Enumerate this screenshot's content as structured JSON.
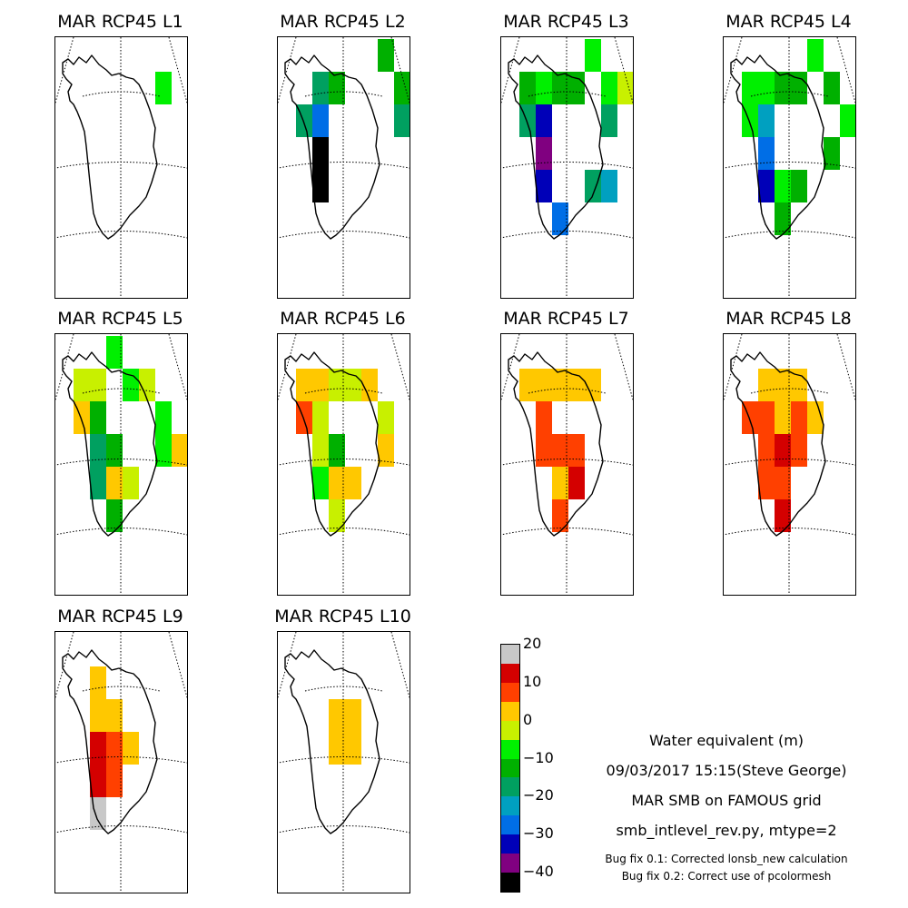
{
  "chart_data": {
    "type": "heatmap",
    "title": "",
    "panels": [
      {
        "title": "MAR RCP45 L1",
        "cells": [
          {
            "col": 6,
            "row": 1,
            "value": -8
          }
        ]
      },
      {
        "title": "MAR RCP45 L2",
        "cells": [
          {
            "col": 2,
            "row": 1,
            "value": -18
          },
          {
            "col": 3,
            "row": 1,
            "value": -14
          },
          {
            "col": 6,
            "row": 0,
            "value": -12
          },
          {
            "col": 7,
            "row": 1,
            "value": -14
          },
          {
            "col": 1,
            "row": 2,
            "value": -20
          },
          {
            "col": 2,
            "row": 2,
            "value": -28
          },
          {
            "col": 7,
            "row": 2,
            "value": -18
          },
          {
            "col": 2,
            "row": 3,
            "value": -45
          },
          {
            "col": 2,
            "row": 4,
            "value": -45
          }
        ]
      },
      {
        "title": "MAR RCP45 L3",
        "cells": [
          {
            "col": 1,
            "row": 1,
            "value": -12
          },
          {
            "col": 2,
            "row": 1,
            "value": -8
          },
          {
            "col": 3,
            "row": 1,
            "value": -12
          },
          {
            "col": 4,
            "row": 1,
            "value": -15
          },
          {
            "col": 5,
            "row": 0,
            "value": -8
          },
          {
            "col": 6,
            "row": 1,
            "value": -8
          },
          {
            "col": 7,
            "row": 1,
            "value": -2
          },
          {
            "col": 1,
            "row": 2,
            "value": -18
          },
          {
            "col": 2,
            "row": 2,
            "value": -32
          },
          {
            "col": 6,
            "row": 2,
            "value": -18
          },
          {
            "col": 2,
            "row": 3,
            "value": -40
          },
          {
            "col": 2,
            "row": 4,
            "value": -32
          },
          {
            "col": 5,
            "row": 4,
            "value": -18
          },
          {
            "col": 6,
            "row": 4,
            "value": -22
          },
          {
            "col": 3,
            "row": 5,
            "value": -28
          }
        ]
      },
      {
        "title": "MAR RCP45 L4",
        "cells": [
          {
            "col": 1,
            "row": 1,
            "value": -8
          },
          {
            "col": 2,
            "row": 1,
            "value": -8
          },
          {
            "col": 3,
            "row": 1,
            "value": -14
          },
          {
            "col": 4,
            "row": 1,
            "value": -14
          },
          {
            "col": 5,
            "row": 0,
            "value": -8
          },
          {
            "col": 6,
            "row": 1,
            "value": -14
          },
          {
            "col": 1,
            "row": 2,
            "value": -8
          },
          {
            "col": 2,
            "row": 2,
            "value": -22
          },
          {
            "col": 7,
            "row": 2,
            "value": -8
          },
          {
            "col": 2,
            "row": 3,
            "value": -28
          },
          {
            "col": 6,
            "row": 3,
            "value": -14
          },
          {
            "col": 2,
            "row": 4,
            "value": -32
          },
          {
            "col": 3,
            "row": 4,
            "value": -8
          },
          {
            "col": 4,
            "row": 4,
            "value": -14
          },
          {
            "col": 3,
            "row": 5,
            "value": -12
          }
        ]
      },
      {
        "title": "MAR RCP45 L5",
        "cells": [
          {
            "col": 1,
            "row": 1,
            "value": -2
          },
          {
            "col": 2,
            "row": 1,
            "value": -2
          },
          {
            "col": 3,
            "row": 0,
            "value": -8
          },
          {
            "col": 4,
            "row": 1,
            "value": -8
          },
          {
            "col": 5,
            "row": 1,
            "value": -2
          },
          {
            "col": 1,
            "row": 2,
            "value": 2
          },
          {
            "col": 2,
            "row": 2,
            "value": -14
          },
          {
            "col": 6,
            "row": 2,
            "value": -8
          },
          {
            "col": 2,
            "row": 3,
            "value": -18
          },
          {
            "col": 3,
            "row": 3,
            "value": -12
          },
          {
            "col": 6,
            "row": 3,
            "value": -8
          },
          {
            "col": 7,
            "row": 3,
            "value": 2
          },
          {
            "col": 2,
            "row": 4,
            "value": -18
          },
          {
            "col": 3,
            "row": 4,
            "value": 2
          },
          {
            "col": 4,
            "row": 4,
            "value": -2
          },
          {
            "col": 3,
            "row": 5,
            "value": -12
          }
        ]
      },
      {
        "title": "MAR RCP45 L6",
        "cells": [
          {
            "col": 1,
            "row": 1,
            "value": 2
          },
          {
            "col": 2,
            "row": 1,
            "value": 2
          },
          {
            "col": 3,
            "row": 1,
            "value": -2
          },
          {
            "col": 4,
            "row": 1,
            "value": -2
          },
          {
            "col": 5,
            "row": 1,
            "value": 2
          },
          {
            "col": 1,
            "row": 2,
            "value": 8
          },
          {
            "col": 2,
            "row": 2,
            "value": -2
          },
          {
            "col": 6,
            "row": 2,
            "value": -2
          },
          {
            "col": 2,
            "row": 3,
            "value": -2
          },
          {
            "col": 3,
            "row": 3,
            "value": -12
          },
          {
            "col": 6,
            "row": 3,
            "value": 2
          },
          {
            "col": 2,
            "row": 4,
            "value": -8
          },
          {
            "col": 3,
            "row": 4,
            "value": 2
          },
          {
            "col": 4,
            "row": 4,
            "value": 2
          },
          {
            "col": 3,
            "row": 5,
            "value": -2
          }
        ]
      },
      {
        "title": "MAR RCP45 L7",
        "cells": [
          {
            "col": 1,
            "row": 1,
            "value": 2
          },
          {
            "col": 2,
            "row": 1,
            "value": 2
          },
          {
            "col": 3,
            "row": 1,
            "value": 2
          },
          {
            "col": 4,
            "row": 1,
            "value": 2
          },
          {
            "col": 5,
            "row": 1,
            "value": 2
          },
          {
            "col": 2,
            "row": 2,
            "value": 8
          },
          {
            "col": 2,
            "row": 3,
            "value": 8
          },
          {
            "col": 3,
            "row": 3,
            "value": 8
          },
          {
            "col": 4,
            "row": 3,
            "value": 8
          },
          {
            "col": 3,
            "row": 4,
            "value": 2
          },
          {
            "col": 4,
            "row": 4,
            "value": 12
          },
          {
            "col": 3,
            "row": 5,
            "value": 8
          }
        ]
      },
      {
        "title": "MAR RCP45 L8",
        "cells": [
          {
            "col": 2,
            "row": 1,
            "value": 2
          },
          {
            "col": 3,
            "row": 1,
            "value": 2
          },
          {
            "col": 4,
            "row": 1,
            "value": 2
          },
          {
            "col": 1,
            "row": 2,
            "value": 8
          },
          {
            "col": 2,
            "row": 2,
            "value": 8
          },
          {
            "col": 3,
            "row": 2,
            "value": 2
          },
          {
            "col": 4,
            "row": 2,
            "value": 8
          },
          {
            "col": 5,
            "row": 2,
            "value": 2
          },
          {
            "col": 2,
            "row": 3,
            "value": 8
          },
          {
            "col": 3,
            "row": 3,
            "value": 12
          },
          {
            "col": 4,
            "row": 3,
            "value": 8
          },
          {
            "col": 2,
            "row": 4,
            "value": 8
          },
          {
            "col": 3,
            "row": 4,
            "value": 8
          },
          {
            "col": 3,
            "row": 5,
            "value": 12
          }
        ]
      },
      {
        "title": "MAR RCP45 L9",
        "cells": [
          {
            "col": 2,
            "row": 1,
            "value": 2
          },
          {
            "col": 2,
            "row": 2,
            "value": 2
          },
          {
            "col": 3,
            "row": 2,
            "value": 2
          },
          {
            "col": 2,
            "row": 3,
            "value": 12
          },
          {
            "col": 3,
            "row": 3,
            "value": 8
          },
          {
            "col": 4,
            "row": 3,
            "value": 2
          },
          {
            "col": 2,
            "row": 4,
            "value": 12
          },
          {
            "col": 3,
            "row": 4,
            "value": 8
          },
          {
            "col": 2,
            "row": 5,
            "value": 18
          }
        ]
      },
      {
        "title": "MAR RCP45 L10",
        "cells": [
          {
            "col": 3,
            "row": 2,
            "value": 2
          },
          {
            "col": 4,
            "row": 2,
            "value": 2
          },
          {
            "col": 3,
            "row": 3,
            "value": 2
          },
          {
            "col": 4,
            "row": 3,
            "value": 2
          }
        ]
      }
    ],
    "colorbar": {
      "min": -45,
      "max": 20,
      "step": 5,
      "ticks": [
        "20",
        "10",
        "0",
        "−10",
        "−20",
        "−30",
        "−40"
      ],
      "tick_values": [
        20,
        10,
        0,
        -10,
        -20,
        -30,
        -40
      ],
      "colors": [
        "#000000",
        "#800080",
        "#0000b8",
        "#006ee6",
        "#00a0c0",
        "#00a060",
        "#00b000",
        "#00f000",
        "#c8f000",
        "#ffc800",
        "#ff4000",
        "#d40000",
        "#c8c8c8"
      ]
    }
  },
  "annotations": {
    "line1": "Water equivalent (m)",
    "line2": "09/03/2017 15:15(Steve George)",
    "line3": "MAR SMB on FAMOUS grid",
    "line4": "smb_intlevel_rev.py, mtype=2",
    "line5": "Bug fix 0.1: Corrected lonsb_new calculation",
    "line6": "Bug fix 0.2: Correct use of pcolormesh"
  }
}
